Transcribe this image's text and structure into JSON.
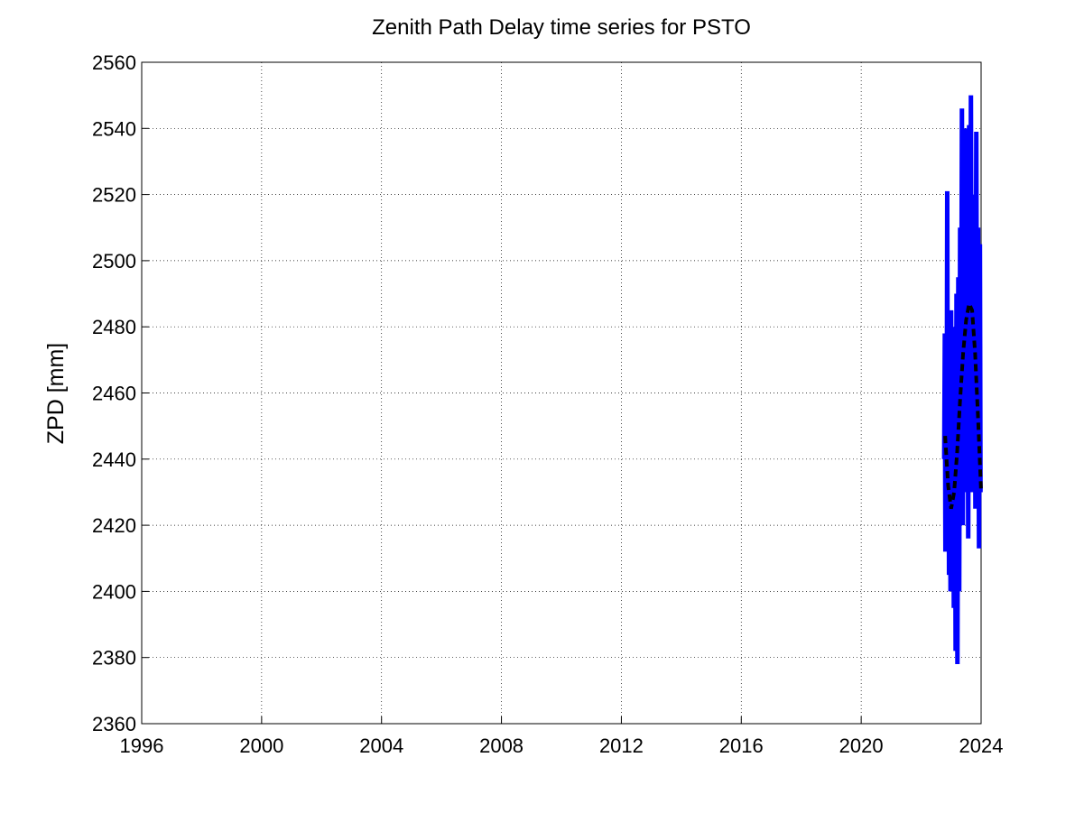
{
  "chart_data": {
    "type": "line",
    "title": "Zenith Path Delay time series for PSTO",
    "ylabel": "ZPD [mm]",
    "xlim": [
      1996,
      2024
    ],
    "xticks": [
      1996,
      2000,
      2004,
      2008,
      2012,
      2016,
      2020,
      2024
    ],
    "ylim": [
      2360,
      2560
    ],
    "yticks": [
      2360,
      2380,
      2400,
      2420,
      2440,
      2460,
      2480,
      2500,
      2520,
      2540,
      2560
    ],
    "grid": true,
    "series": [
      {
        "color": "#0000ff",
        "linestyle": "solid",
        "x": [
          2022.77,
          2022.79,
          2022.81,
          2022.83,
          2022.85,
          2022.87,
          2022.89,
          2022.91,
          2022.93,
          2022.95,
          2022.98,
          2023.0,
          2023.03,
          2023.06,
          2023.09,
          2023.12,
          2023.15,
          2023.18,
          2023.21,
          2023.24,
          2023.27,
          2023.3,
          2023.33,
          2023.36,
          2023.39,
          2023.42,
          2023.45,
          2023.48,
          2023.51,
          2023.54,
          2023.57,
          2023.6,
          2023.63,
          2023.66,
          2023.69,
          2023.72,
          2023.75,
          2023.78,
          2023.81,
          2023.84,
          2023.87,
          2023.9,
          2023.93,
          2023.96,
          2023.98
        ],
        "values": [
          2440,
          2478,
          2412,
          2465,
          2425,
          2521,
          2415,
          2480,
          2405,
          2470,
          2400,
          2485,
          2410,
          2470,
          2395,
          2480,
          2382,
          2490,
          2378,
          2495,
          2400,
          2510,
          2430,
          2546,
          2420,
          2530,
          2430,
          2540,
          2450,
          2530,
          2416,
          2541,
          2440,
          2550,
          2430,
          2520,
          2440,
          2510,
          2425,
          2539,
          2430,
          2510,
          2413,
          2505,
          2430
        ]
      },
      {
        "color": "#000000",
        "linestyle": "dashed",
        "x": [
          2022.8,
          2022.9,
          2023.0,
          2023.1,
          2023.2,
          2023.3,
          2023.4,
          2023.5,
          2023.6,
          2023.7,
          2023.8,
          2023.9,
          2024.0
        ],
        "values": [
          2447,
          2432,
          2425,
          2430,
          2442,
          2458,
          2472,
          2482,
          2487,
          2485,
          2472,
          2452,
          2430
        ]
      }
    ]
  }
}
